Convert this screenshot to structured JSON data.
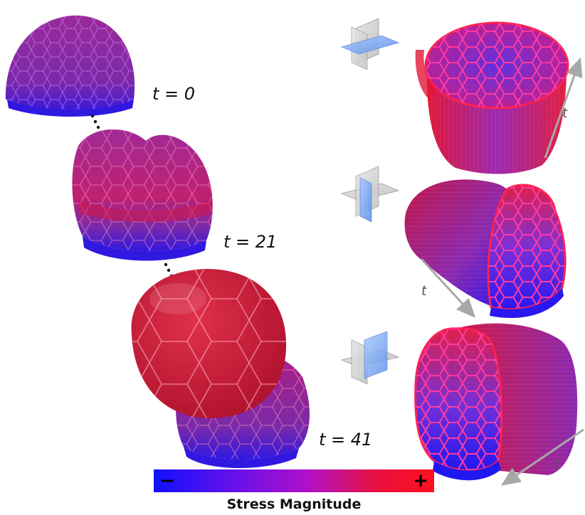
{
  "time_labels": [
    "t = 0",
    "t = 21",
    "t = 41"
  ],
  "axis_label": "t",
  "colorbar": {
    "title": "Stress Magnitude",
    "min_label": "−",
    "max_label": "+",
    "low_color": "#1010ff",
    "high_color": "#ff1020"
  }
}
